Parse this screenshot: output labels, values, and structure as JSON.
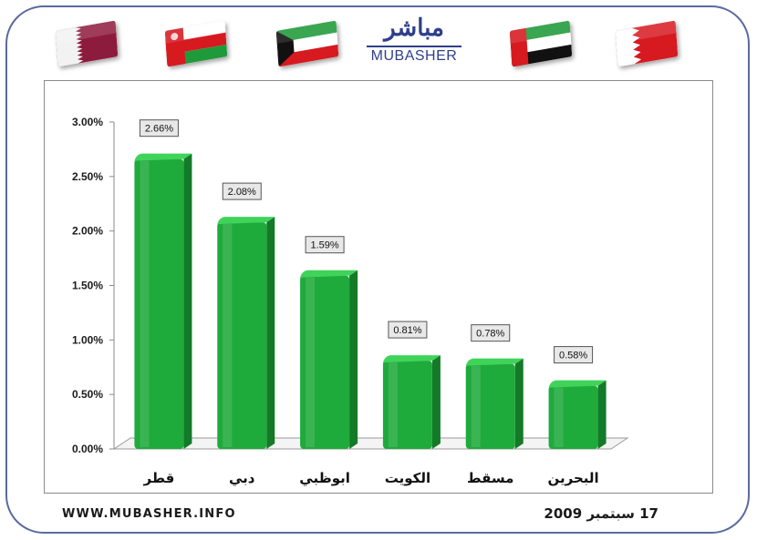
{
  "header": {
    "logo_ar": "مباشر",
    "logo_en": "MUBASHER"
  },
  "flags": [
    {
      "name": "qatar-flag"
    },
    {
      "name": "oman-flag"
    },
    {
      "name": "kuwait-flag"
    },
    {
      "name": "uae-flag"
    },
    {
      "name": "bahrain-flag"
    }
  ],
  "colors": {
    "bar": "#1faa3c",
    "bar_top": "#3fd35a",
    "bar_side": "#137a28",
    "frame": "#5a6a9e",
    "logo": "#2f3f8a"
  },
  "chart_data": {
    "type": "bar",
    "categories": [
      "قطر",
      "دبي",
      "ابوظبي",
      "الكويت",
      "مسقط",
      "البحرين"
    ],
    "values": [
      2.66,
      2.08,
      1.59,
      0.81,
      0.78,
      0.58
    ],
    "data_labels": [
      "2.66%",
      "2.08%",
      "1.59%",
      "0.81%",
      "0.78%",
      "0.58%"
    ],
    "y_ticks": [
      "0.00%",
      "0.50%",
      "1.00%",
      "1.50%",
      "2.00%",
      "2.50%",
      "3.00%"
    ],
    "y_tick_values": [
      0,
      0.5,
      1.0,
      1.5,
      2.0,
      2.5,
      3.0
    ],
    "ylim": [
      0,
      3.0
    ],
    "grid": false,
    "legend": false
  },
  "footer": {
    "website": "WWW.MUBASHER.INFO",
    "date": "17 سبتمبر 2009"
  }
}
